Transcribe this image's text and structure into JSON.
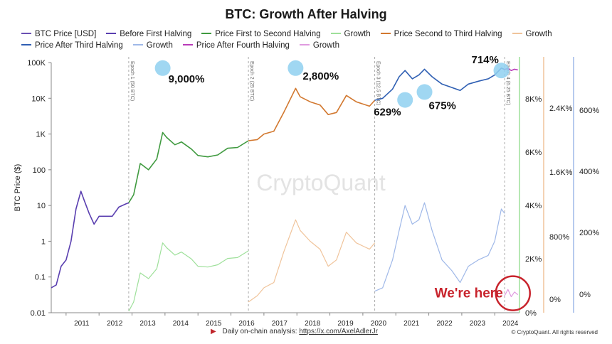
{
  "title": "BTC: Growth After Halving",
  "legend": [
    {
      "label": "BTC Price [USD]",
      "color": "#6a4fb3"
    },
    {
      "label": "Before First Halving",
      "color": "#5a3fb0"
    },
    {
      "label": "Price First to Second Halving",
      "color": "#3f9a3f"
    },
    {
      "label": "Growth",
      "color": "#9ee09a"
    },
    {
      "label": "Price Second to Third Halving",
      "color": "#d2782f"
    },
    {
      "label": "Growth",
      "color": "#f0c49b"
    },
    {
      "label": "Price After Third Halving",
      "color": "#2f5fb3"
    },
    {
      "label": "Growth",
      "color": "#9fb8e8"
    },
    {
      "label": "Price After Fourth Halving",
      "color": "#b83bb8"
    },
    {
      "label": "Growth",
      "color": "#e09be0"
    }
  ],
  "watermark": "CryptoQuant",
  "footer": {
    "text": "Daily on-chain analysis: ",
    "link": "https://x.com/AxelAdlerJr",
    "copyright": "© CryptoQuant. All rights reserved"
  },
  "chart_data": {
    "type": "line",
    "ylabel": "BTC Price ($)",
    "yscale": "log",
    "ylim": [
      0.01,
      100000
    ],
    "y_ticks": [
      "0.01",
      "0.1",
      "1",
      "10",
      "100",
      "1K",
      "10K",
      "100K"
    ],
    "x_ticks": [
      "2011",
      "2012",
      "2013",
      "2014",
      "2015",
      "2016",
      "2017",
      "2018",
      "2019",
      "2020",
      "2021",
      "2022",
      "2023",
      "2024"
    ],
    "xlim": [
      2010.55,
      2024.75
    ],
    "halvings": [
      {
        "label": "Epoch 1 (50 BTC)",
        "x": 2012.9
      },
      {
        "label": "Epoch 2 (25 BTC)",
        "x": 2016.53
      },
      {
        "label": "Epoch 3 (12.5 BTC)",
        "x": 2020.36
      },
      {
        "label": "Epoch 4 (6.25 BTC)",
        "x": 2024.3
      }
    ],
    "right_axes": [
      {
        "ticks": [
          "0%",
          "2K%",
          "4K%",
          "6K%",
          "8K%"
        ],
        "color": "#9ee09a"
      },
      {
        "ticks": [
          "0%",
          "800%",
          "1.6K%",
          "2.4K%"
        ],
        "color": "#f0c49b"
      },
      {
        "ticks": [
          "0%",
          "200%",
          "400%",
          "600%"
        ],
        "color": "#9fb8e8"
      }
    ],
    "annotations": [
      {
        "text": "9,000%",
        "x": 2013.93,
        "y": 70000
      },
      {
        "text": "2,800%",
        "x": 2017.96,
        "y": 70000
      },
      {
        "text": "629%",
        "x": 2021.28,
        "y": 9000
      },
      {
        "text": "675%",
        "x": 2021.87,
        "y": 15000
      },
      {
        "text": "714%",
        "x": 2024.2,
        "y": 60000
      },
      {
        "text": "We're here",
        "x": 2024.55,
        "y": 0.035
      }
    ],
    "series": [
      {
        "name": "Before First Halving",
        "color": "#5a3fb0",
        "x": [
          2010.55,
          2010.7,
          2010.85,
          2011.0,
          2011.15,
          2011.3,
          2011.45,
          2011.55,
          2011.7,
          2011.85,
          2012.0,
          2012.2,
          2012.4,
          2012.6,
          2012.8,
          2012.9
        ],
        "y": [
          0.05,
          0.06,
          0.2,
          0.3,
          1.0,
          8.0,
          25.0,
          14.0,
          6.0,
          3.0,
          5.0,
          5.0,
          5.0,
          9.0,
          11.0,
          12.0
        ]
      },
      {
        "name": "Price First to Second Halving",
        "color": "#3f9a3f",
        "x": [
          2012.9,
          2013.05,
          2013.25,
          2013.5,
          2013.75,
          2013.93,
          2014.05,
          2014.3,
          2014.5,
          2014.8,
          2015.0,
          2015.3,
          2015.6,
          2015.9,
          2016.2,
          2016.53
        ],
        "y": [
          12,
          20,
          150,
          100,
          200,
          1100,
          800,
          500,
          600,
          380,
          250,
          230,
          260,
          400,
          420,
          650
        ]
      },
      {
        "name": "Growth",
        "color": "#9ee09a",
        "x": [
          2012.9,
          2013.05,
          2013.25,
          2013.5,
          2013.75,
          2013.93,
          2014.05,
          2014.3,
          2014.5,
          2014.8,
          2015.0,
          2015.3,
          2015.6,
          2015.9,
          2016.2,
          2016.53
        ],
        "y": [
          0.011,
          0.02,
          0.13,
          0.09,
          0.17,
          0.9,
          0.66,
          0.41,
          0.5,
          0.32,
          0.2,
          0.19,
          0.22,
          0.33,
          0.35,
          0.54
        ]
      },
      {
        "name": "Price Second to Third Halving",
        "color": "#d2782f",
        "x": [
          2016.53,
          2016.8,
          2017.0,
          2017.3,
          2017.6,
          2017.96,
          2018.1,
          2018.4,
          2018.7,
          2018.95,
          2019.2,
          2019.5,
          2019.8,
          2020.2,
          2020.36
        ],
        "y": [
          650,
          700,
          1000,
          1200,
          4000,
          19000,
          11000,
          8000,
          6500,
          3500,
          4000,
          12000,
          8000,
          6000,
          8800
        ]
      },
      {
        "name": "Growth",
        "color": "#f0c49b",
        "x": [
          2016.53,
          2016.8,
          2017.0,
          2017.3,
          2017.6,
          2017.96,
          2018.1,
          2018.4,
          2018.7,
          2018.95,
          2019.2,
          2019.5,
          2019.8,
          2020.2,
          2020.36
        ],
        "y": [
          0.02,
          0.03,
          0.05,
          0.07,
          0.5,
          4.0,
          2.0,
          1.0,
          0.6,
          0.2,
          0.3,
          1.8,
          0.9,
          0.6,
          0.9
        ]
      },
      {
        "name": "Price After Third Halving",
        "color": "#2f5fb3",
        "x": [
          2020.36,
          2020.6,
          2020.9,
          2021.1,
          2021.28,
          2021.5,
          2021.7,
          2021.87,
          2022.1,
          2022.4,
          2022.7,
          2022.95,
          2023.2,
          2023.5,
          2023.8,
          2024.0,
          2024.2,
          2024.3
        ],
        "y": [
          8800,
          10000,
          18000,
          40000,
          60000,
          35000,
          45000,
          65000,
          40000,
          25000,
          20000,
          16500,
          25000,
          30000,
          35000,
          45000,
          70000,
          64000
        ]
      },
      {
        "name": "Growth",
        "color": "#9fb8e8",
        "x": [
          2020.36,
          2020.6,
          2020.9,
          2021.1,
          2021.28,
          2021.5,
          2021.7,
          2021.87,
          2022.1,
          2022.4,
          2022.7,
          2022.95,
          2023.2,
          2023.5,
          2023.8,
          2024.0,
          2024.2,
          2024.3
        ],
        "y": [
          0.04,
          0.05,
          0.3,
          2.0,
          10.0,
          3.0,
          4.0,
          12.0,
          2.0,
          0.3,
          0.15,
          0.07,
          0.2,
          0.3,
          0.4,
          1.0,
          8.0,
          6.0
        ]
      },
      {
        "name": "Price After Fourth Halving",
        "color": "#b83bb8",
        "x": [
          2024.3,
          2024.4,
          2024.5,
          2024.6,
          2024.7
        ],
        "y": [
          64000,
          68000,
          60000,
          65000,
          62000
        ]
      },
      {
        "name": "Growth",
        "color": "#e09be0",
        "x": [
          2024.3,
          2024.4,
          2024.5,
          2024.6,
          2024.7
        ],
        "y": [
          0.03,
          0.045,
          0.028,
          0.038,
          0.032
        ]
      }
    ]
  }
}
